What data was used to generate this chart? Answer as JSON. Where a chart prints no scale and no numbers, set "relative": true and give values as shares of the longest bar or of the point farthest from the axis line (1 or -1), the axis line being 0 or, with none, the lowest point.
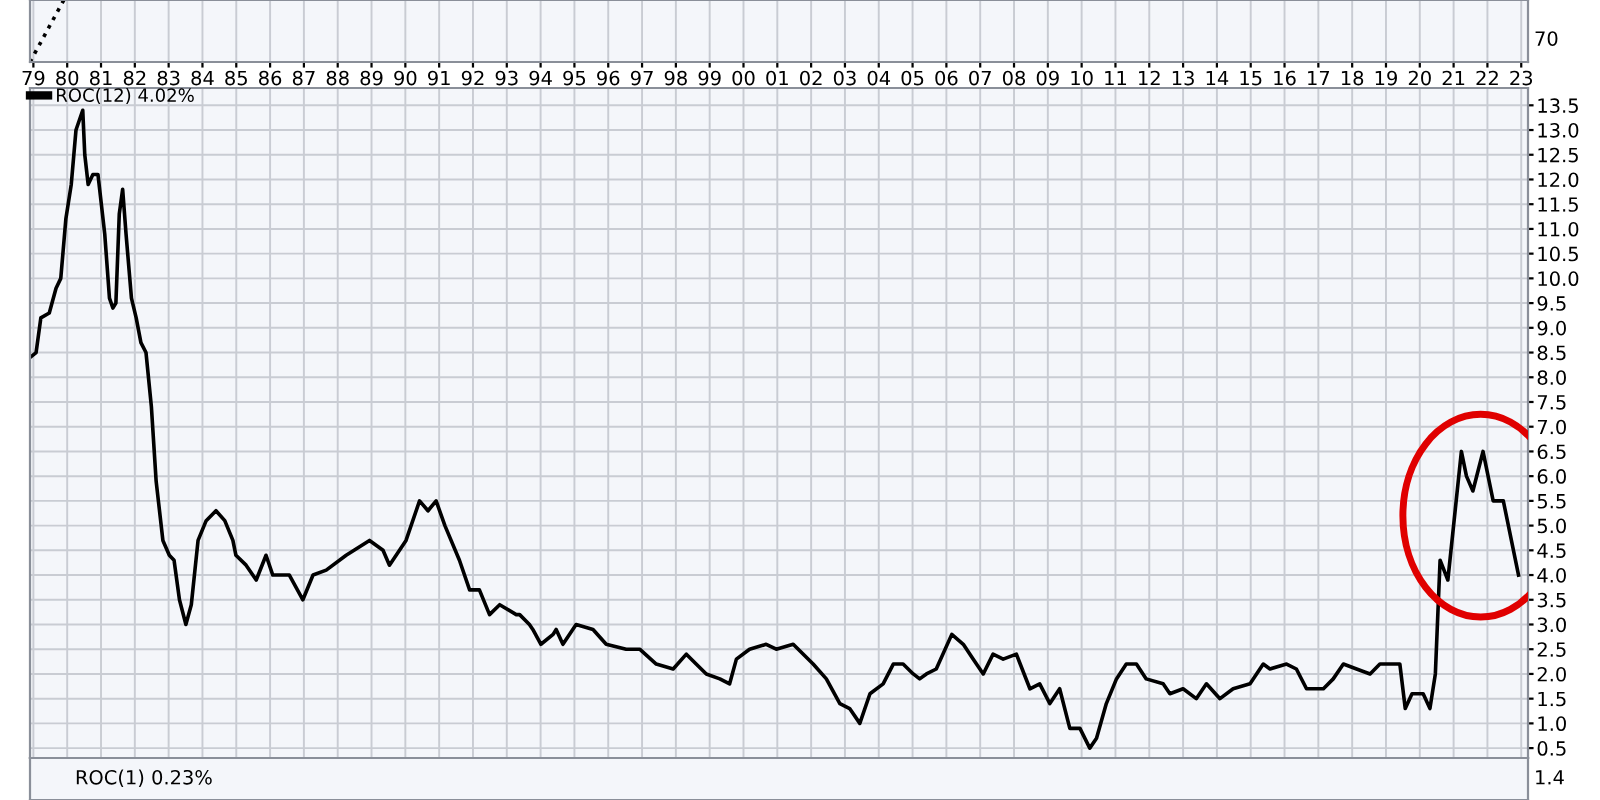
{
  "chart_data": [
    {
      "type": "line",
      "relative": true,
      "line_style": "dotted",
      "grid": "x",
      "tick_labels": "x",
      "xlim": [
        1978.9,
        2023.2
      ],
      "xticks": [
        {
          "value": 1979,
          "label": "79"
        },
        {
          "value": 1980,
          "label": "80"
        },
        {
          "value": 1981,
          "label": "81"
        },
        {
          "value": 1982,
          "label": "82"
        },
        {
          "value": 1983,
          "label": "83"
        },
        {
          "value": 1984,
          "label": "84"
        },
        {
          "value": 1985,
          "label": "85"
        },
        {
          "value": 1986,
          "label": "86"
        },
        {
          "value": 1987,
          "label": "87"
        },
        {
          "value": 1988,
          "label": "88"
        },
        {
          "value": 1989,
          "label": "89"
        },
        {
          "value": 1990,
          "label": "90"
        },
        {
          "value": 1991,
          "label": "91"
        },
        {
          "value": 1992,
          "label": "92"
        },
        {
          "value": 1993,
          "label": "93"
        },
        {
          "value": 1994,
          "label": "94"
        },
        {
          "value": 1995,
          "label": "95"
        },
        {
          "value": 1996,
          "label": "96"
        },
        {
          "value": 1997,
          "label": "97"
        },
        {
          "value": 1998,
          "label": "98"
        },
        {
          "value": 1999,
          "label": "99"
        },
        {
          "value": 2000,
          "label": "00"
        },
        {
          "value": 2001,
          "label": "01"
        },
        {
          "value": 2002,
          "label": "02"
        },
        {
          "value": 2003,
          "label": "03"
        },
        {
          "value": 2004,
          "label": "04"
        },
        {
          "value": 2005,
          "label": "05"
        },
        {
          "value": 2006,
          "label": "06"
        },
        {
          "value": 2007,
          "label": "07"
        },
        {
          "value": 2008,
          "label": "08"
        },
        {
          "value": 2009,
          "label": "09"
        },
        {
          "value": 2010,
          "label": "10"
        },
        {
          "value": 2011,
          "label": "11"
        },
        {
          "value": 2012,
          "label": "12"
        },
        {
          "value": 2013,
          "label": "13"
        },
        {
          "value": 2014,
          "label": "14"
        },
        {
          "value": 2015,
          "label": "15"
        },
        {
          "value": 2016,
          "label": "16"
        },
        {
          "value": 2017,
          "label": "17"
        },
        {
          "value": 2018,
          "label": "18"
        },
        {
          "value": 2019,
          "label": "19"
        },
        {
          "value": 2020,
          "label": "20"
        },
        {
          "value": 2021,
          "label": "21"
        },
        {
          "value": 2022,
          "label": "22"
        },
        {
          "value": 2023,
          "label": "23"
        }
      ],
      "annotations": [
        "70"
      ],
      "series": [
        {
          "color": "#000000",
          "x": [
            1978.9,
            1979.9
          ],
          "values": [
            0,
            1
          ]
        }
      ]
    },
    {
      "type": "line",
      "grid": true,
      "legend": "top left",
      "tick_labels": "y",
      "xlim": [
        1978.9,
        2023.2
      ],
      "ylim": [
        0.3,
        13.85
      ],
      "yticks": [
        {
          "value": 0.5,
          "label": "0.5"
        },
        {
          "value": 1,
          "label": "1.0"
        },
        {
          "value": 1.5,
          "label": "1.5"
        },
        {
          "value": 2,
          "label": "2.0"
        },
        {
          "value": 2.5,
          "label": "2.5"
        },
        {
          "value": 3,
          "label": "3.0"
        },
        {
          "value": 3.5,
          "label": "3.5"
        },
        {
          "value": 4,
          "label": "4.0"
        },
        {
          "value": 4.5,
          "label": "4.5"
        },
        {
          "value": 5,
          "label": "5.0"
        },
        {
          "value": 5.5,
          "label": "5.5"
        },
        {
          "value": 6,
          "label": "6.0"
        },
        {
          "value": 6.5,
          "label": "6.5"
        },
        {
          "value": 7,
          "label": "7.0"
        },
        {
          "value": 7.5,
          "label": "7.5"
        },
        {
          "value": 8,
          "label": "8.0"
        },
        {
          "value": 8.5,
          "label": "8.5"
        },
        {
          "value": 9,
          "label": "9.0"
        },
        {
          "value": 9.5,
          "label": "9.5"
        },
        {
          "value": 10,
          "label": "10.0"
        },
        {
          "value": 10.5,
          "label": "10.5"
        },
        {
          "value": 11,
          "label": "11.0"
        },
        {
          "value": 11.5,
          "label": "11.5"
        },
        {
          "value": 12,
          "label": "12.0"
        },
        {
          "value": 12.5,
          "label": "12.5"
        },
        {
          "value": 13,
          "label": "13.0"
        },
        {
          "value": 13.5,
          "label": "13.5"
        }
      ],
      "series": [
        {
          "name": "ROC(12) 4.02%",
          "color": "#000000",
          "x": [
            1978.9,
            1979.08,
            1979.22,
            1979.47,
            1979.67,
            1979.81,
            1979.96,
            1980.12,
            1980.26,
            1980.46,
            1980.52,
            1980.62,
            1980.76,
            1980.91,
            1981.11,
            1981.25,
            1981.35,
            1981.44,
            1981.54,
            1981.64,
            1981.74,
            1981.9,
            1982.04,
            1982.18,
            1982.33,
            1982.49,
            1982.63,
            1982.83,
            1983.02,
            1983.16,
            1983.32,
            1983.51,
            1983.67,
            1983.87,
            1984.11,
            1984.4,
            1984.66,
            1984.9,
            1984.99,
            1985.29,
            1985.59,
            1985.88,
            1986.08,
            1986.57,
            1986.97,
            1987.27,
            1987.66,
            1988.25,
            1988.94,
            1989.34,
            1989.53,
            1990.02,
            1990.42,
            1990.67,
            1990.91,
            1991.17,
            1991.6,
            1991.9,
            1992.19,
            1992.49,
            1992.79,
            1993.28,
            1993.38,
            1993.67,
            1993.77,
            1994.01,
            1994.37,
            1994.46,
            1994.66,
            1995.05,
            1995.55,
            1995.94,
            1996.53,
            1996.93,
            1997.42,
            1997.92,
            1998.31,
            1998.6,
            1998.9,
            1999.3,
            1999.59,
            1999.79,
            2000.18,
            2000.67,
            2000.97,
            2001.47,
            2002.06,
            2002.45,
            2002.85,
            2003.14,
            2003.44,
            2003.74,
            2004.13,
            2004.43,
            2004.72,
            2005.02,
            2005.21,
            2005.41,
            2005.7,
            2006.16,
            2006.5,
            2006.79,
            2007.09,
            2007.38,
            2007.68,
            2008.07,
            2008.47,
            2008.76,
            2009.06,
            2009.35,
            2009.65,
            2009.95,
            2010.24,
            2010.44,
            2010.73,
            2011.03,
            2011.32,
            2011.62,
            2011.91,
            2012.41,
            2012.61,
            2013.0,
            2013.39,
            2013.69,
            2014.09,
            2014.48,
            2014.98,
            2015.37,
            2015.57,
            2016.06,
            2016.35,
            2016.65,
            2017.15,
            2017.44,
            2017.74,
            2018.13,
            2018.53,
            2018.82,
            2019.22,
            2019.41,
            2019.57,
            2019.77,
            2020.1,
            2020.3,
            2020.46,
            2020.6,
            2020.83,
            2021.23,
            2021.38,
            2021.57,
            2021.87,
            2022.17,
            2022.47,
            2022.92
          ],
          "values": [
            8.4,
            8.5,
            9.2,
            9.3,
            9.8,
            10.0,
            11.2,
            11.9,
            13.0,
            13.4,
            12.5,
            11.9,
            12.1,
            12.1,
            10.9,
            9.6,
            9.4,
            9.5,
            11.3,
            11.8,
            10.9,
            9.6,
            9.2,
            8.7,
            8.5,
            7.4,
            5.9,
            4.7,
            4.4,
            4.3,
            3.5,
            3.0,
            3.4,
            4.7,
            5.1,
            5.3,
            5.1,
            4.7,
            4.4,
            4.2,
            3.9,
            4.4,
            4.0,
            4.0,
            3.5,
            4.0,
            4.1,
            4.4,
            4.7,
            4.5,
            4.2,
            4.7,
            5.5,
            5.3,
            5.5,
            5.0,
            4.3,
            3.7,
            3.7,
            3.2,
            3.4,
            3.2,
            3.2,
            3.0,
            2.9,
            2.6,
            2.8,
            2.9,
            2.6,
            3.0,
            2.9,
            2.6,
            2.5,
            2.5,
            2.2,
            2.1,
            2.4,
            2.2,
            2.0,
            1.9,
            1.8,
            2.3,
            2.5,
            2.6,
            2.5,
            2.6,
            2.2,
            1.9,
            1.4,
            1.3,
            1.0,
            1.6,
            1.8,
            2.2,
            2.2,
            2.0,
            1.9,
            2.0,
            2.1,
            2.8,
            2.6,
            2.3,
            2.0,
            2.4,
            2.3,
            2.4,
            1.7,
            1.8,
            1.4,
            1.7,
            0.9,
            0.9,
            0.5,
            0.7,
            1.4,
            1.9,
            2.2,
            2.2,
            1.9,
            1.8,
            1.6,
            1.7,
            1.5,
            1.8,
            1.5,
            1.7,
            1.8,
            2.2,
            2.1,
            2.2,
            2.1,
            1.7,
            1.7,
            1.9,
            2.2,
            2.1,
            2.0,
            2.2,
            2.2,
            2.2,
            1.3,
            1.6,
            1.6,
            1.3,
            2.0,
            4.3,
            3.9,
            6.5,
            6.0,
            5.7,
            6.5,
            5.5,
            5.5,
            4.0
          ]
        }
      ]
    },
    {
      "type": "other",
      "annotations": [
        "ROC(1) 0.23%",
        "1.4"
      ]
    }
  ]
}
